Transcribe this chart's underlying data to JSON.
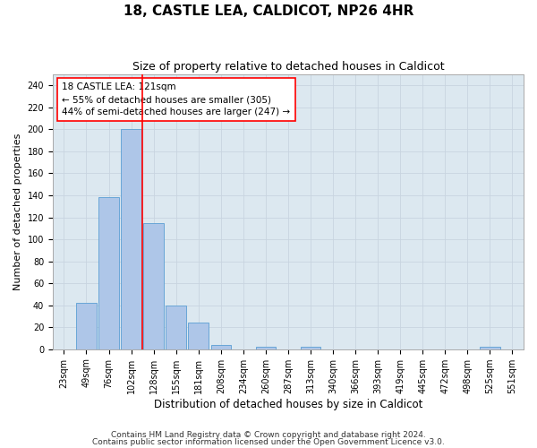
{
  "title1": "18, CASTLE LEA, CALDICOT, NP26 4HR",
  "title2": "Size of property relative to detached houses in Caldicot",
  "xlabel": "Distribution of detached houses by size in Caldicot",
  "ylabel": "Number of detached properties",
  "footnote1": "Contains HM Land Registry data © Crown copyright and database right 2024.",
  "footnote2": "Contains public sector information licensed under the Open Government Licence v3.0.",
  "annotation_line1": "18 CASTLE LEA: 121sqm",
  "annotation_line2": "← 55% of detached houses are smaller (305)",
  "annotation_line3": "44% of semi-detached houses are larger (247) →",
  "bar_color": "#aec6e8",
  "bar_edge_color": "#5a9fd4",
  "vline_color": "red",
  "categories": [
    "23sqm",
    "49sqm",
    "76sqm",
    "102sqm",
    "128sqm",
    "155sqm",
    "181sqm",
    "208sqm",
    "234sqm",
    "260sqm",
    "287sqm",
    "313sqm",
    "340sqm",
    "366sqm",
    "393sqm",
    "419sqm",
    "445sqm",
    "472sqm",
    "498sqm",
    "525sqm",
    "551sqm"
  ],
  "values": [
    0,
    42,
    138,
    200,
    115,
    40,
    24,
    4,
    0,
    2,
    0,
    2,
    0,
    0,
    0,
    0,
    0,
    0,
    0,
    2,
    0
  ],
  "ylim": [
    0,
    250
  ],
  "yticks": [
    0,
    20,
    40,
    60,
    80,
    100,
    120,
    140,
    160,
    180,
    200,
    220,
    240
  ],
  "vline_x_index": 3.5,
  "grid_color": "#c8d4e0",
  "bg_color": "#dce8f0",
  "title1_fontsize": 11,
  "title2_fontsize": 9,
  "annotation_fontsize": 7.5,
  "axis_fontsize": 7,
  "xlabel_fontsize": 8.5,
  "ylabel_fontsize": 8,
  "footnote_fontsize": 6.5
}
